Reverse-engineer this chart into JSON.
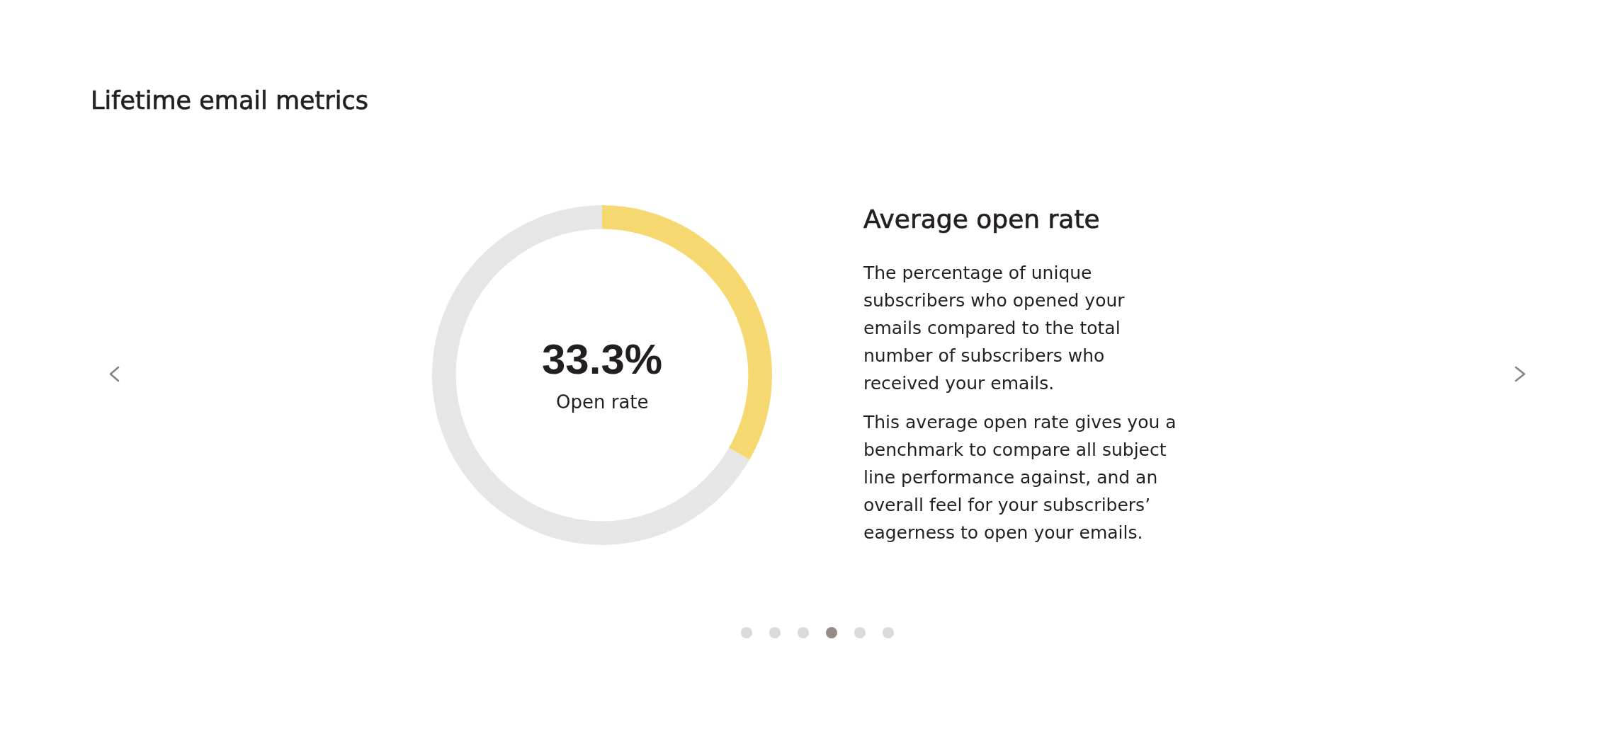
{
  "chart_data": [
    {
      "type": "donut",
      "title": "Lifetime email metrics",
      "categories": [
        null,
        null
      ],
      "values": [
        33.3,
        66.7
      ],
      "colors": [
        "#f5d970",
        "#e6e6e6"
      ],
      "annotations": [
        "33.3%",
        "Open rate"
      ]
    },
    {
      "type": "other",
      "title": "Average open rate",
      "annotations": [
        "The percentage of unique subscribers who opened your emails compared to the total number of subscribers who received your emails.",
        "This average open rate gives you a benchmark to compare all subject line performance against, and an overall feel for your subscribers’ eagerness to open your emails."
      ]
    }
  ]
}
